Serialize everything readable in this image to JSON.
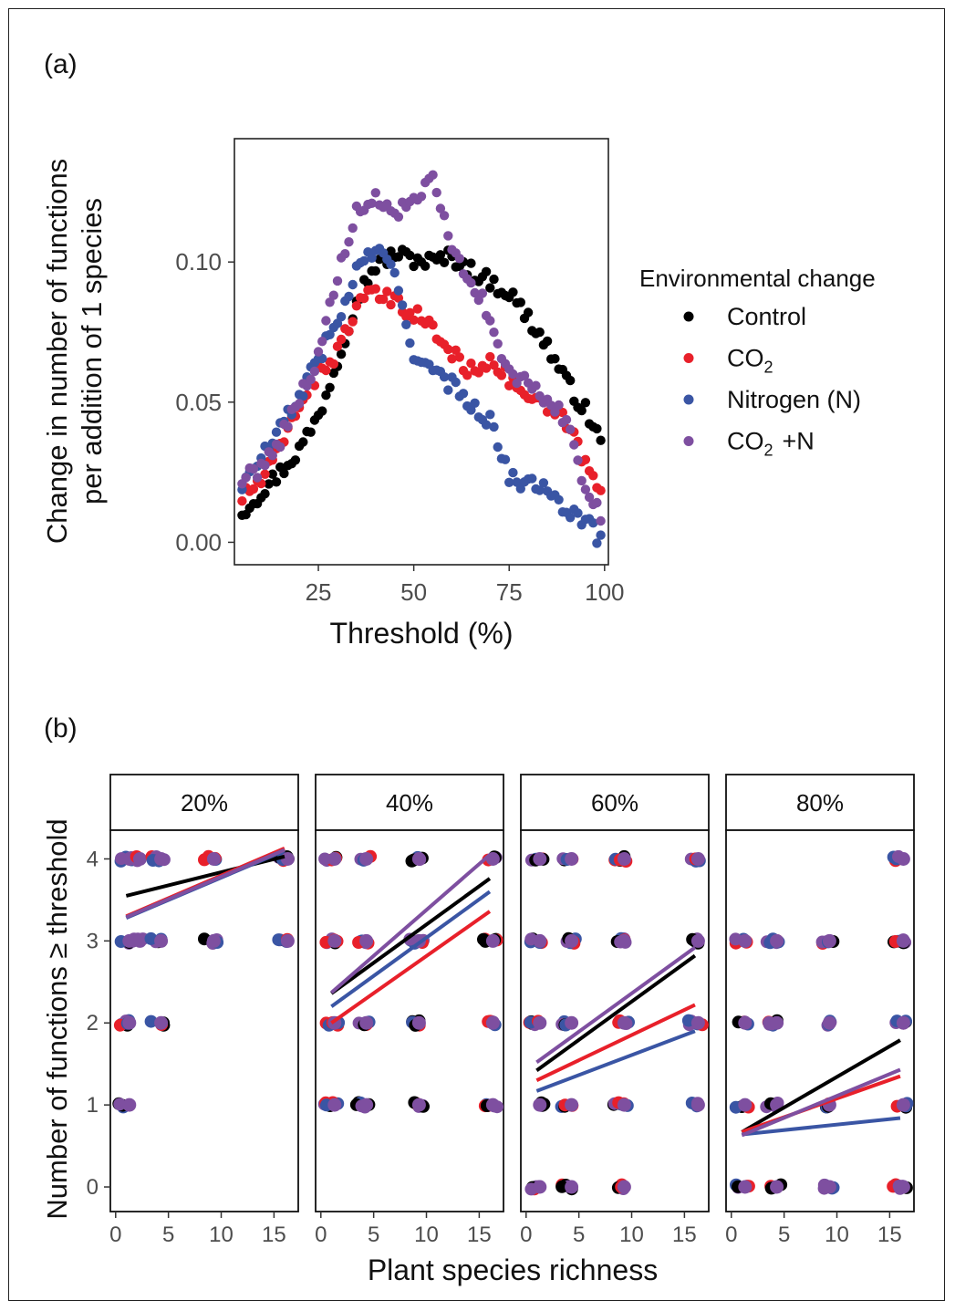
{
  "panel_labels": {
    "a": "(a)",
    "b": "(b)"
  },
  "legend": {
    "title": "Environmental change",
    "items": [
      {
        "key": "control",
        "label": "Control"
      },
      {
        "key": "co2",
        "label": "CO",
        "sub": "2"
      },
      {
        "key": "nitrogen",
        "label": "Nitrogen (N)"
      },
      {
        "key": "co2n",
        "label": "CO",
        "sub": "2",
        "suffix": "+N"
      }
    ]
  },
  "colors": {
    "control": "#000000",
    "co2": "#e8202a",
    "nitrogen": "#3a55a4",
    "co2n": "#7e4fa0"
  },
  "chart_data": [
    {
      "panel": "a",
      "type": "scatter",
      "xlabel": "Threshold (%)",
      "ylabel_lines": [
        "Change in number of functions",
        "per addition of 1 species"
      ],
      "xlim": [
        3,
        101
      ],
      "ylim": [
        -0.008,
        0.144
      ],
      "xticks": [
        25,
        50,
        75,
        100
      ],
      "yticks": [
        0.0,
        0.05,
        0.1
      ],
      "ytick_labels": [
        "0.00",
        "0.05",
        "0.10"
      ],
      "grid": false,
      "legend_position": "right",
      "series": [
        {
          "key": "control",
          "name": "Control",
          "knots": [
            [
              5,
              0.011
            ],
            [
              10,
              0.018
            ],
            [
              15,
              0.025
            ],
            [
              20,
              0.033
            ],
            [
              25,
              0.045
            ],
            [
              30,
              0.065
            ],
            [
              35,
              0.087
            ],
            [
              40,
              0.099
            ],
            [
              45,
              0.103
            ],
            [
              50,
              0.101
            ],
            [
              55,
              0.1
            ],
            [
              60,
              0.102
            ],
            [
              65,
              0.097
            ],
            [
              70,
              0.093
            ],
            [
              75,
              0.089
            ],
            [
              80,
              0.08
            ],
            [
              85,
              0.07
            ],
            [
              90,
              0.057
            ],
            [
              95,
              0.047
            ],
            [
              99,
              0.036
            ]
          ]
        },
        {
          "key": "co2",
          "name": "CO2",
          "knots": [
            [
              5,
              0.016
            ],
            [
              10,
              0.022
            ],
            [
              15,
              0.033
            ],
            [
              20,
              0.05
            ],
            [
              25,
              0.06
            ],
            [
              30,
              0.068
            ],
            [
              35,
              0.084
            ],
            [
              40,
              0.089
            ],
            [
              45,
              0.085
            ],
            [
              50,
              0.082
            ],
            [
              55,
              0.076
            ],
            [
              60,
              0.067
            ],
            [
              65,
              0.061
            ],
            [
              70,
              0.066
            ],
            [
              75,
              0.058
            ],
            [
              80,
              0.052
            ],
            [
              85,
              0.047
            ],
            [
              90,
              0.043
            ],
            [
              95,
              0.028
            ],
            [
              99,
              0.017
            ]
          ]
        },
        {
          "key": "nitrogen",
          "name": "Nitrogen (N)",
          "knots": [
            [
              5,
              0.02
            ],
            [
              10,
              0.03
            ],
            [
              15,
              0.04
            ],
            [
              20,
              0.052
            ],
            [
              25,
              0.066
            ],
            [
              30,
              0.078
            ],
            [
              35,
              0.097
            ],
            [
              40,
              0.105
            ],
            [
              45,
              0.095
            ],
            [
              50,
              0.068
            ],
            [
              55,
              0.06
            ],
            [
              60,
              0.056
            ],
            [
              65,
              0.05
            ],
            [
              70,
              0.043
            ],
            [
              75,
              0.024
            ],
            [
              80,
              0.02
            ],
            [
              85,
              0.021
            ],
            [
              90,
              0.012
            ],
            [
              95,
              0.008
            ],
            [
              99,
              0.0
            ]
          ]
        },
        {
          "key": "co2n",
          "name": "CO2 + N",
          "knots": [
            [
              5,
              0.022
            ],
            [
              10,
              0.027
            ],
            [
              15,
              0.037
            ],
            [
              20,
              0.052
            ],
            [
              25,
              0.066
            ],
            [
              30,
              0.095
            ],
            [
              35,
              0.117
            ],
            [
              40,
              0.122
            ],
            [
              45,
              0.118
            ],
            [
              50,
              0.12
            ],
            [
              55,
              0.13
            ],
            [
              60,
              0.103
            ],
            [
              65,
              0.095
            ],
            [
              70,
              0.08
            ],
            [
              75,
              0.059
            ],
            [
              80,
              0.057
            ],
            [
              85,
              0.05
            ],
            [
              90,
              0.044
            ],
            [
              95,
              0.02
            ],
            [
              99,
              0.01
            ]
          ]
        }
      ]
    },
    {
      "panel": "b",
      "type": "scatter",
      "xlabel": "Plant species richness",
      "ylabel": "Number of functions ≥ threshold",
      "xlim": [
        -0.5,
        17.3
      ],
      "ylim": [
        -0.3,
        4.35
      ],
      "xticks": [
        0,
        5,
        10,
        15
      ],
      "yticks": [
        0,
        1,
        2,
        3,
        4
      ],
      "facets": [
        {
          "label": "20%",
          "lines": {
            "control": [
              3.55,
              4.03
            ],
            "co2": [
              3.3,
              4.13
            ],
            "nitrogen": [
              3.28,
              4.1
            ],
            "co2n": [
              3.29,
              4.11
            ]
          },
          "points": [
            [
              1,
              4
            ],
            [
              1,
              3
            ],
            [
              1,
              2
            ],
            [
              1,
              1
            ],
            [
              2,
              4
            ],
            [
              2,
              3
            ],
            [
              4,
              4
            ],
            [
              4,
              3
            ],
            [
              4,
              2
            ],
            [
              9,
              4
            ],
            [
              9,
              3
            ],
            [
              16,
              4
            ],
            [
              16,
              3
            ]
          ]
        },
        {
          "label": "40%",
          "lines": {
            "control": [
              2.36,
              3.76
            ],
            "co2": [
              2.0,
              3.36
            ],
            "nitrogen": [
              2.2,
              3.6
            ],
            "co2n": [
              2.37,
              4.05
            ]
          },
          "points": [
            [
              1,
              4
            ],
            [
              1,
              3
            ],
            [
              1,
              2
            ],
            [
              1,
              1
            ],
            [
              4,
              4
            ],
            [
              4,
              3
            ],
            [
              4,
              2
            ],
            [
              4,
              1
            ],
            [
              9,
              4
            ],
            [
              9,
              3
            ],
            [
              9,
              2
            ],
            [
              9,
              1
            ],
            [
              16,
              4
            ],
            [
              16,
              3
            ],
            [
              16,
              2
            ],
            [
              16,
              1
            ]
          ]
        },
        {
          "label": "60%",
          "lines": {
            "control": [
              1.42,
              2.82
            ],
            "co2": [
              1.3,
              2.22
            ],
            "nitrogen": [
              1.17,
              1.9
            ],
            "co2n": [
              1.52,
              2.92
            ]
          },
          "points": [
            [
              1,
              4
            ],
            [
              1,
              3
            ],
            [
              1,
              2
            ],
            [
              1,
              1
            ],
            [
              1,
              0
            ],
            [
              4,
              4
            ],
            [
              4,
              3
            ],
            [
              4,
              2
            ],
            [
              4,
              1
            ],
            [
              4,
              0
            ],
            [
              9,
              4
            ],
            [
              9,
              3
            ],
            [
              9,
              2
            ],
            [
              9,
              1
            ],
            [
              9,
              0
            ],
            [
              16,
              4
            ],
            [
              16,
              3
            ],
            [
              16,
              2
            ],
            [
              16,
              1
            ]
          ]
        },
        {
          "label": "80%",
          "lines": {
            "control": [
              0.67,
              1.79
            ],
            "co2": [
              0.67,
              1.35
            ],
            "nitrogen": [
              0.64,
              0.84
            ],
            "co2n": [
              0.63,
              1.43
            ]
          },
          "points": [
            [
              1,
              3
            ],
            [
              1,
              2
            ],
            [
              1,
              1
            ],
            [
              1,
              0
            ],
            [
              4,
              3
            ],
            [
              4,
              2
            ],
            [
              4,
              1
            ],
            [
              4,
              0
            ],
            [
              9,
              3
            ],
            [
              9,
              2
            ],
            [
              9,
              1
            ],
            [
              9,
              0
            ],
            [
              16,
              4
            ],
            [
              16,
              3
            ],
            [
              16,
              2
            ],
            [
              16,
              1
            ],
            [
              16,
              0
            ]
          ]
        }
      ]
    }
  ]
}
